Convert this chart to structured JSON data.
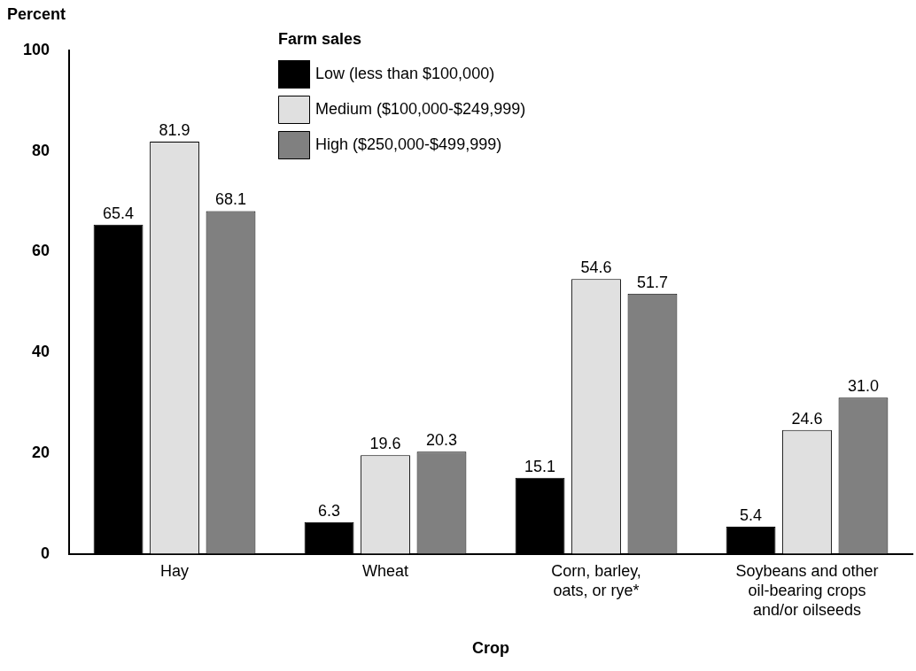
{
  "chart_data": {
    "type": "bar",
    "xlabel": "Crop",
    "ylabel": "Percent",
    "legend_title": "Farm sales",
    "legend": "top",
    "categories": [
      "Hay",
      "Wheat",
      "Corn, barley, oats, or rye*",
      "Soybeans and other oil-bearing crops and/or oilseeds"
    ],
    "series": [
      {
        "name": "Low (less than $100,000)",
        "color": "#000000",
        "values": [
          65.4,
          6.3,
          15.1,
          5.4
        ],
        "value_labels": [
          "65.4",
          "6.3",
          "15.1",
          "5.4"
        ]
      },
      {
        "name": "Medium ($100,000-$249,999)",
        "color": "#e0e0e0",
        "values": [
          81.9,
          19.6,
          54.6,
          24.6
        ],
        "value_labels": [
          "81.9",
          "19.6",
          "54.6",
          "24.6"
        ]
      },
      {
        "name": "High ($250,000-$499,999)",
        "color": "#808080",
        "values": [
          68.1,
          20.3,
          51.7,
          31.0
        ],
        "value_labels": [
          "68.1",
          "20.3",
          "51.7",
          "31.0"
        ]
      }
    ],
    "ylim": [
      0,
      100
    ],
    "yticks": [
      0,
      20,
      40,
      60,
      80,
      100
    ],
    "grid": false
  }
}
